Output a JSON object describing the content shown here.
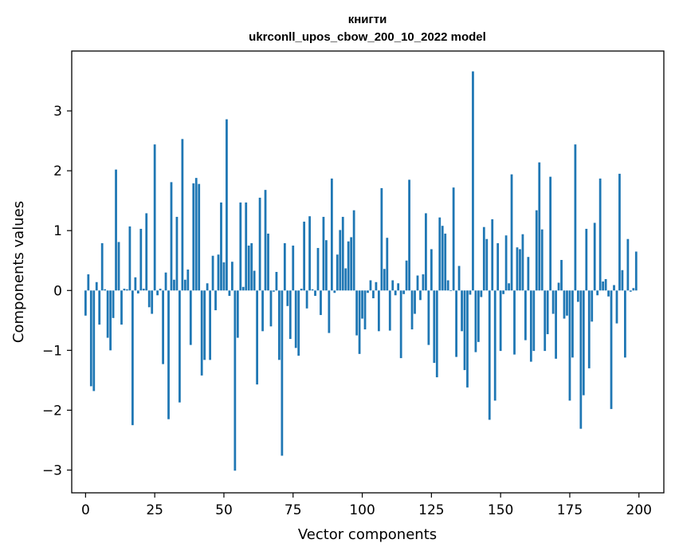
{
  "chart_data": {
    "type": "bar",
    "title": "книгти",
    "subtitle": "ukrconll_upos_cbow_200_10_2022 model",
    "xlabel": "Vector components",
    "ylabel": "Components values",
    "xlim": [
      -5,
      209
    ],
    "ylim": [
      -3.38,
      4.0
    ],
    "xticks": [
      0,
      25,
      50,
      75,
      100,
      125,
      150,
      175,
      200
    ],
    "yticks": [
      -3,
      -2,
      -1,
      0,
      1,
      2,
      3
    ],
    "ytick_labels": [
      "−3",
      "−2",
      "−1",
      "0",
      "1",
      "2",
      "3"
    ],
    "bar_color": "#1f77b4",
    "grid": false,
    "legend": "none",
    "x": [
      0,
      1,
      2,
      3,
      4,
      5,
      6,
      7,
      8,
      9,
      10,
      11,
      12,
      13,
      14,
      15,
      16,
      17,
      18,
      19,
      20,
      21,
      22,
      23,
      24,
      25,
      26,
      27,
      28,
      29,
      30,
      31,
      32,
      33,
      34,
      35,
      36,
      37,
      38,
      39,
      40,
      41,
      42,
      43,
      44,
      45,
      46,
      47,
      48,
      49,
      50,
      51,
      52,
      53,
      54,
      55,
      56,
      57,
      58,
      59,
      60,
      61,
      62,
      63,
      64,
      65,
      66,
      67,
      68,
      69,
      70,
      71,
      72,
      73,
      74,
      75,
      76,
      77,
      78,
      79,
      80,
      81,
      82,
      83,
      84,
      85,
      86,
      87,
      88,
      89,
      90,
      91,
      92,
      93,
      94,
      95,
      96,
      97,
      98,
      99,
      100,
      101,
      102,
      103,
      104,
      105,
      106,
      107,
      108,
      109,
      110,
      111,
      112,
      113,
      114,
      115,
      116,
      117,
      118,
      119,
      120,
      121,
      122,
      123,
      124,
      125,
      126,
      127,
      128,
      129,
      130,
      131,
      132,
      133,
      134,
      135,
      136,
      137,
      138,
      139,
      140,
      141,
      142,
      143,
      144,
      145,
      146,
      147,
      148,
      149,
      150,
      151,
      152,
      153,
      154,
      155,
      156,
      157,
      158,
      159,
      160,
      161,
      162,
      163,
      164,
      165,
      166,
      167,
      168,
      169,
      170,
      171,
      172,
      173,
      174,
      175,
      176,
      177,
      178,
      179,
      180,
      181,
      182,
      183,
      184,
      185,
      186,
      187,
      188,
      189,
      190,
      191,
      192,
      193,
      194,
      195,
      196,
      197,
      198,
      199
    ],
    "values": [
      -0.42,
      0.27,
      -1.6,
      -1.68,
      0.14,
      -0.57,
      0.79,
      0.02,
      -0.79,
      -1.0,
      -0.46,
      2.02,
      0.81,
      -0.57,
      0.03,
      0.02,
      1.07,
      -2.25,
      0.22,
      -0.05,
      1.03,
      0.03,
      1.29,
      -0.28,
      -0.39,
      2.44,
      -0.08,
      0.03,
      -1.23,
      0.3,
      -2.15,
      1.81,
      0.18,
      1.23,
      -1.87,
      2.53,
      0.18,
      0.35,
      -0.91,
      1.79,
      1.88,
      1.78,
      -1.42,
      -1.16,
      0.12,
      -1.16,
      0.58,
      -0.33,
      0.6,
      1.47,
      0.47,
      2.86,
      -0.09,
      0.48,
      -3.01,
      -0.79,
      1.47,
      0.06,
      1.47,
      0.75,
      0.79,
      0.33,
      -1.57,
      1.55,
      -0.68,
      1.68,
      0.95,
      -0.6,
      -0.02,
      0.31,
      -1.16,
      -2.76,
      0.79,
      -0.26,
      -0.81,
      0.75,
      -0.96,
      -1.09,
      0.03,
      1.15,
      -0.3,
      1.24,
      0.02,
      -0.09,
      0.71,
      -0.41,
      1.23,
      0.84,
      -0.71,
      1.87,
      -0.04,
      0.6,
      1.01,
      1.23,
      0.37,
      0.82,
      0.89,
      1.34,
      -0.75,
      -1.06,
      -0.47,
      -0.65,
      -0.04,
      0.17,
      -0.13,
      0.14,
      -0.68,
      1.71,
      0.36,
      0.88,
      -0.67,
      0.17,
      -0.08,
      0.12,
      -1.13,
      -0.06,
      0.5,
      1.85,
      -0.65,
      -0.39,
      0.25,
      -0.16,
      0.27,
      1.29,
      -0.91,
      0.69,
      -1.21,
      -1.45,
      1.22,
      1.08,
      0.95,
      0.17,
      -0.01,
      1.72,
      -1.11,
      0.41,
      -0.68,
      -1.33,
      -1.62,
      -0.07,
      3.66,
      -1.03,
      -0.86,
      -0.11,
      1.06,
      0.86,
      -2.16,
      1.19,
      -1.84,
      0.79,
      -1.01,
      -0.06,
      0.92,
      0.12,
      1.94,
      -1.07,
      0.72,
      0.69,
      0.94,
      -0.83,
      0.56,
      -1.19,
      -1.01,
      1.34,
      2.14,
      1.02,
      -1.01,
      -0.73,
      1.9,
      -0.39,
      -1.14,
      0.13,
      0.51,
      -0.47,
      -0.42,
      -1.84,
      -1.12,
      2.44,
      -0.19,
      -2.31,
      -1.75,
      1.03,
      -1.3,
      -0.52,
      1.13,
      -0.08,
      1.87,
      0.15,
      0.19,
      -0.1,
      -1.98,
      0.09,
      -0.55,
      1.95,
      0.34,
      -1.12,
      0.86,
      -0.02,
      0.04,
      0.65
    ]
  }
}
